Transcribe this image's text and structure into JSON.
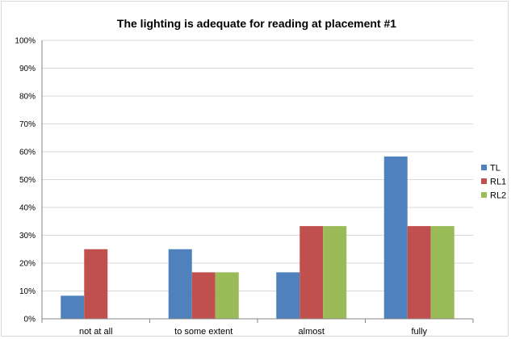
{
  "chart_data": {
    "type": "bar",
    "title": "The lighting is adequate for reading at placement #1",
    "xlabel": "",
    "ylabel": "",
    "categories": [
      "not at all",
      "to some extent",
      "almost",
      "fully"
    ],
    "series": [
      {
        "name": "TL",
        "color": "#4f81bd",
        "values": [
          8.3,
          25.0,
          16.7,
          58.3
        ]
      },
      {
        "name": "RL1",
        "color": "#c0504d",
        "values": [
          25.0,
          16.7,
          33.3,
          33.3
        ]
      },
      {
        "name": "RL2",
        "color": "#9bbb59",
        "values": [
          0,
          16.7,
          33.3,
          33.3
        ]
      }
    ],
    "ylim": [
      0,
      100
    ],
    "yticks": [
      0,
      10,
      20,
      30,
      40,
      50,
      60,
      70,
      80,
      90,
      100
    ],
    "ytick_format": "percent",
    "grid": "horizontal",
    "legend": "right"
  }
}
